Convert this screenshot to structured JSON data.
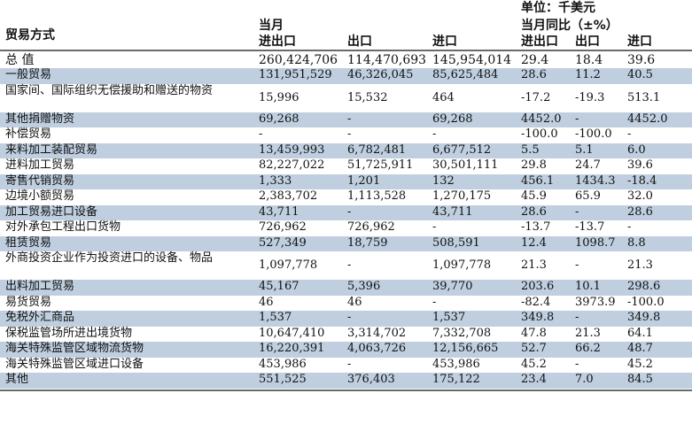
{
  "unit_label": "单位：千美元",
  "headers": {
    "trade_mode": "贸易方式",
    "month_label": "当月",
    "total": "进出口",
    "export": "出口",
    "import": "进口",
    "yoy_label": "当月同比（±%）",
    "yoy_total": "进出口",
    "yoy_export": "出口",
    "yoy_import": "进口"
  },
  "total_row": {
    "name": "总 值",
    "total": "260,424,706",
    "export": "114,470,693",
    "import": "145,954,014",
    "yoy_total": "29.4",
    "yoy_export": "18.4",
    "yoy_import": "39.6"
  },
  "rows": [
    {
      "name": "一般贸易",
      "total": "131,951,529",
      "export": "46,326,045",
      "import": "85,625,484",
      "yoy_total": "28.6",
      "yoy_export": "11.2",
      "yoy_import": "40.5"
    },
    {
      "name": "国家间、国际组织无偿援助和赠送的物资",
      "total": "15,996",
      "export": "15,532",
      "import": "464",
      "yoy_total": "-17.2",
      "yoy_export": "-19.3",
      "yoy_import": "513.1"
    },
    {
      "name": "其他捐赠物资",
      "total": "69,268",
      "export": "-",
      "import": "69,268",
      "yoy_total": "4452.0",
      "yoy_export": "-",
      "yoy_import": "4452.0"
    },
    {
      "name": "补偿贸易",
      "total": "-",
      "export": "-",
      "import": "-",
      "yoy_total": "-100.0",
      "yoy_export": "-100.0",
      "yoy_import": "-"
    },
    {
      "name": "来料加工装配贸易",
      "total": "13,459,993",
      "export": "6,782,481",
      "import": "6,677,512",
      "yoy_total": "5.5",
      "yoy_export": "5.1",
      "yoy_import": "6.0"
    },
    {
      "name": "进料加工贸易",
      "total": "82,227,022",
      "export": "51,725,911",
      "import": "30,501,111",
      "yoy_total": "29.8",
      "yoy_export": "24.7",
      "yoy_import": "39.6"
    },
    {
      "name": "寄售代销贸易",
      "total": "1,333",
      "export": "1,201",
      "import": "132",
      "yoy_total": "456.1",
      "yoy_export": "1434.3",
      "yoy_import": "-18.4"
    },
    {
      "name": "边境小额贸易",
      "total": "2,383,702",
      "export": "1,113,528",
      "import": "1,270,175",
      "yoy_total": "45.9",
      "yoy_export": "65.9",
      "yoy_import": "32.0"
    },
    {
      "name": "加工贸易进口设备",
      "total": "43,711",
      "export": "-",
      "import": "43,711",
      "yoy_total": "28.6",
      "yoy_export": "-",
      "yoy_import": "28.6"
    },
    {
      "name": "对外承包工程出口货物",
      "total": "726,962",
      "export": "726,962",
      "import": "-",
      "yoy_total": "-13.7",
      "yoy_export": "-13.7",
      "yoy_import": "-"
    },
    {
      "name": "租赁贸易",
      "total": "527,349",
      "export": "18,759",
      "import": "508,591",
      "yoy_total": "12.4",
      "yoy_export": "1098.7",
      "yoy_import": "8.8"
    },
    {
      "name": "外商投资企业作为投资进口的设备、物品",
      "total": "1,097,778",
      "export": "-",
      "import": "1,097,778",
      "yoy_total": "21.3",
      "yoy_export": "-",
      "yoy_import": "21.3"
    },
    {
      "name": "出料加工贸易",
      "total": "45,167",
      "export": "5,396",
      "import": "39,770",
      "yoy_total": "203.6",
      "yoy_export": "10.1",
      "yoy_import": "298.6"
    },
    {
      "name": "易货贸易",
      "total": "46",
      "export": "46",
      "import": "-",
      "yoy_total": "-82.4",
      "yoy_export": "3973.9",
      "yoy_import": "-100.0"
    },
    {
      "name": "免税外汇商品",
      "total": "1,537",
      "export": "-",
      "import": "1,537",
      "yoy_total": "349.8",
      "yoy_export": "-",
      "yoy_import": "349.8"
    },
    {
      "name": "保税监管场所进出境货物",
      "total": "10,647,410",
      "export": "3,314,702",
      "import": "7,332,708",
      "yoy_total": "47.8",
      "yoy_export": "21.3",
      "yoy_import": "64.1"
    },
    {
      "name": "海关特殊监管区域物流货物",
      "total": "16,220,391",
      "export": "4,063,726",
      "import": "12,156,665",
      "yoy_total": "52.7",
      "yoy_export": "66.2",
      "yoy_import": "48.7"
    },
    {
      "name": "海关特殊监管区域进口设备",
      "total": "453,986",
      "export": "-",
      "import": "453,986",
      "yoy_total": "45.2",
      "yoy_export": "-",
      "yoy_import": "45.2"
    },
    {
      "name": "其他",
      "total": "551,525",
      "export": "376,403",
      "import": "175,122",
      "yoy_total": "23.4",
      "yoy_export": "7.0",
      "yoy_import": "84.5"
    }
  ]
}
